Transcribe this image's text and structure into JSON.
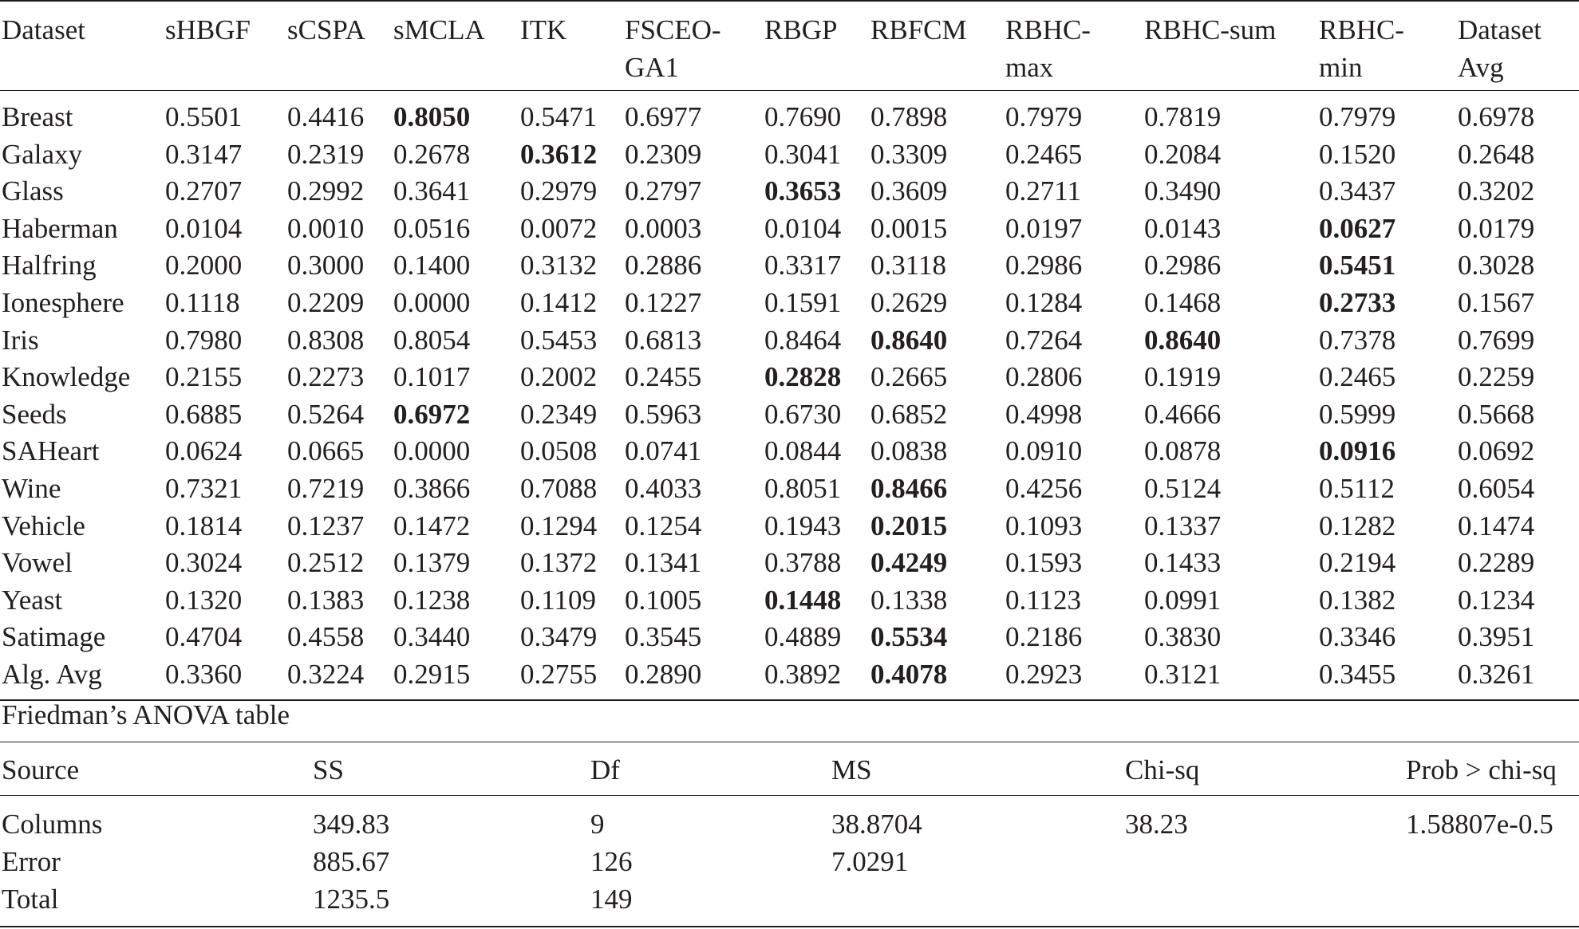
{
  "main_table": {
    "headers": [
      "Dataset",
      "sHBGF",
      "sCSPA",
      "sMCLA",
      "ITK",
      "FSCEO-\nGA1",
      "RBGP",
      "RBFCM",
      "RBHC-\nmax",
      "RBHC-sum",
      "RBHC-\nmin",
      "Dataset\nAvg"
    ],
    "rows": [
      {
        "name": "Breast",
        "values": [
          "0.5501",
          "0.4416",
          "0.8050",
          "0.5471",
          "0.6977",
          "0.7690",
          "0.7898",
          "0.7979",
          "0.7819",
          "0.7979",
          "0.6978"
        ],
        "best": [
          2
        ]
      },
      {
        "name": "Galaxy",
        "values": [
          "0.3147",
          "0.2319",
          "0.2678",
          "0.3612",
          "0.2309",
          "0.3041",
          "0.3309",
          "0.2465",
          "0.2084",
          "0.1520",
          "0.2648"
        ],
        "best": [
          3
        ]
      },
      {
        "name": "Glass",
        "values": [
          "0.2707",
          "0.2992",
          "0.3641",
          "0.2979",
          "0.2797",
          "0.3653",
          "0.3609",
          "0.2711",
          "0.3490",
          "0.3437",
          "0.3202"
        ],
        "best": [
          5
        ]
      },
      {
        "name": "Haberman",
        "values": [
          "0.0104",
          "0.0010",
          "0.0516",
          "0.0072",
          "0.0003",
          "0.0104",
          "0.0015",
          "0.0197",
          "0.0143",
          "0.0627",
          "0.0179"
        ],
        "best": [
          9
        ]
      },
      {
        "name": "Halfring",
        "values": [
          "0.2000",
          "0.3000",
          "0.1400",
          "0.3132",
          "0.2886",
          "0.3317",
          "0.3118",
          "0.2986",
          "0.2986",
          "0.5451",
          "0.3028"
        ],
        "best": [
          9
        ]
      },
      {
        "name": "Ionesphere",
        "values": [
          "0.1118",
          "0.2209",
          "0.0000",
          "0.1412",
          "0.1227",
          "0.1591",
          "0.2629",
          "0.1284",
          "0.1468",
          "0.2733",
          "0.1567"
        ],
        "best": [
          9
        ]
      },
      {
        "name": "Iris",
        "values": [
          "0.7980",
          "0.8308",
          "0.8054",
          "0.5453",
          "0.6813",
          "0.8464",
          "0.8640",
          "0.7264",
          "0.8640",
          "0.7378",
          "0.7699"
        ],
        "best": [
          6,
          8
        ]
      },
      {
        "name": "Knowledge",
        "values": [
          "0.2155",
          "0.2273",
          "0.1017",
          "0.2002",
          "0.2455",
          "0.2828",
          "0.2665",
          "0.2806",
          "0.1919",
          "0.2465",
          "0.2259"
        ],
        "best": [
          5
        ]
      },
      {
        "name": "Seeds",
        "values": [
          "0.6885",
          "0.5264",
          "0.6972",
          "0.2349",
          "0.5963",
          "0.6730",
          "0.6852",
          "0.4998",
          "0.4666",
          "0.5999",
          "0.5668"
        ],
        "best": [
          2
        ]
      },
      {
        "name": "SAHeart",
        "values": [
          "0.0624",
          "0.0665",
          "0.0000",
          "0.0508",
          "0.0741",
          "0.0844",
          "0.0838",
          "0.0910",
          "0.0878",
          "0.0916",
          "0.0692"
        ],
        "best": [
          9
        ]
      },
      {
        "name": "Wine",
        "values": [
          "0.7321",
          "0.7219",
          "0.3866",
          "0.7088",
          "0.4033",
          "0.8051",
          "0.8466",
          "0.4256",
          "0.5124",
          "0.5112",
          "0.6054"
        ],
        "best": [
          6
        ]
      },
      {
        "name": "Vehicle",
        "values": [
          "0.1814",
          "0.1237",
          "0.1472",
          "0.1294",
          "0.1254",
          "0.1943",
          "0.2015",
          "0.1093",
          "0.1337",
          "0.1282",
          "0.1474"
        ],
        "best": [
          6
        ]
      },
      {
        "name": "Vowel",
        "values": [
          "0.3024",
          "0.2512",
          "0.1379",
          "0.1372",
          "0.1341",
          "0.3788",
          "0.4249",
          "0.1593",
          "0.1433",
          "0.2194",
          "0.2289"
        ],
        "best": [
          6
        ]
      },
      {
        "name": "Yeast",
        "values": [
          "0.1320",
          "0.1383",
          "0.1238",
          "0.1109",
          "0.1005",
          "0.1448",
          "0.1338",
          "0.1123",
          "0.0991",
          "0.1382",
          "0.1234"
        ],
        "best": [
          5
        ]
      },
      {
        "name": "Satimage",
        "values": [
          "0.4704",
          "0.4558",
          "0.3440",
          "0.3479",
          "0.3545",
          "0.4889",
          "0.5534",
          "0.2186",
          "0.3830",
          "0.3346",
          "0.3951"
        ],
        "best": [
          6
        ]
      },
      {
        "name": "Alg. Avg",
        "values": [
          "0.3360",
          "0.3224",
          "0.2915",
          "0.2755",
          "0.2890",
          "0.3892",
          "0.4078",
          "0.2923",
          "0.3121",
          "0.3455",
          "0.3261"
        ],
        "best": [
          6
        ]
      }
    ]
  },
  "anova": {
    "title": "Friedman’s ANOVA table",
    "headers": [
      "Source",
      "SS",
      "Df",
      "MS",
      "Chi-sq",
      "Prob > chi-sq"
    ],
    "rows": [
      [
        "Columns",
        "349.83",
        "9",
        "38.8704",
        "38.23",
        "1.58807e-0.5"
      ],
      [
        "Error",
        "885.67",
        "126",
        "7.0291",
        "",
        ""
      ],
      [
        "Total",
        "1235.5",
        "149",
        "",
        "",
        ""
      ]
    ]
  }
}
